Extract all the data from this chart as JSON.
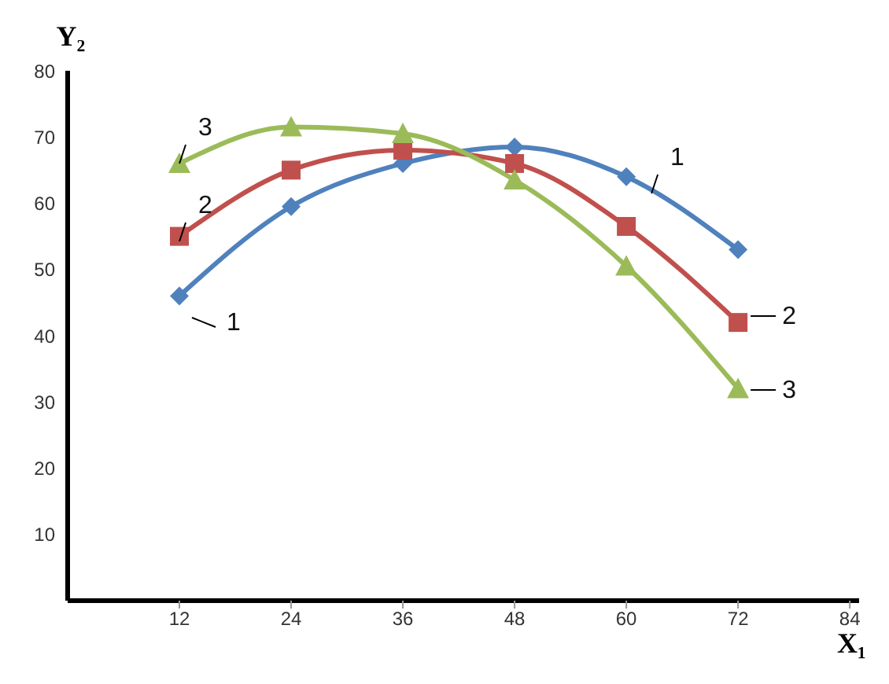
{
  "chart_data": {
    "type": "line",
    "xlabel": "X₁",
    "ylabel": "Y₂",
    "x": [
      12,
      24,
      36,
      48,
      60,
      72
    ],
    "series": [
      {
        "color": "#4f81bd",
        "marker": "diamond",
        "values": [
          46,
          59.5,
          66,
          68.5,
          64,
          53
        ]
      },
      {
        "color": "#c0504d",
        "marker": "square",
        "values": [
          55,
          65,
          68,
          66,
          56.5,
          42
        ]
      },
      {
        "color": "#9bbb59",
        "marker": "triangle",
        "values": [
          66,
          71.5,
          70.5,
          63.5,
          50.5,
          32
        ]
      }
    ],
    "xlim": [
      0,
      85
    ],
    "xticks": [
      12,
      24,
      36,
      48,
      60,
      72,
      84
    ],
    "ylim": [
      0,
      80
    ],
    "yticks": [
      {
        "value": 0,
        "label": null
      },
      10,
      20,
      30,
      40,
      50,
      60,
      70,
      80
    ],
    "grid": false,
    "legend": false,
    "annotations": [
      {
        "text": "1",
        "x": 12,
        "y": 46
      },
      {
        "text": "2",
        "x": 12,
        "y": 55
      },
      {
        "text": "3",
        "x": 12,
        "y": 66
      },
      {
        "text": "1",
        "x": 60,
        "y": 64
      },
      {
        "text": "2",
        "x": 72,
        "y": 42
      },
      {
        "text": "3",
        "x": 72,
        "y": 32
      }
    ]
  }
}
